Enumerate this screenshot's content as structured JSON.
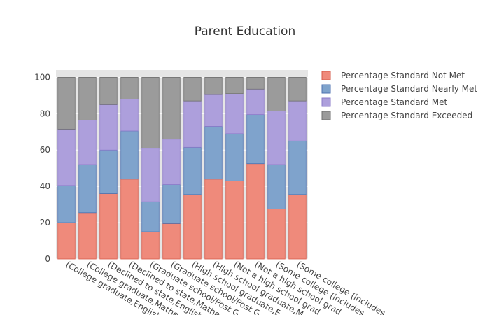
{
  "chart_data": {
    "type": "bar",
    "stacked": true,
    "title": "Parent Education",
    "xlabel": "",
    "ylabel": "",
    "ylim": [
      0,
      100
    ],
    "yticks": [
      0,
      20,
      40,
      60,
      80,
      100
    ],
    "grid": true,
    "legend_position": "top-right",
    "categories": [
      "(College graduate,English",
      "(College graduate,Mathe",
      "(Declined to state,English",
      "(Declined to state,Mathe",
      "(Graduate school/Post G",
      "(Graduate school/Post G",
      "(High school graduate,E",
      "(High school graduate,M",
      "(Not a high school grad",
      "(Not a high school grad",
      "(Some college (includes",
      "(Some college (includes"
    ],
    "series": [
      {
        "name": "Percentage Standard Not Met",
        "color": "#ef8a7b",
        "stroke": "#d65a4a",
        "values": [
          20,
          25.5,
          36,
          44,
          15,
          19.5,
          35.5,
          44,
          43,
          52.5,
          27.5,
          35.5
        ]
      },
      {
        "name": "Percentage Standard Nearly Met",
        "color": "#7fa3cc",
        "stroke": "#4c72b0",
        "values": [
          20.5,
          26.5,
          24,
          26.5,
          16.5,
          21.5,
          26,
          29,
          26,
          27,
          24.5,
          29.5
        ]
      },
      {
        "name": "Percentage Standard Met",
        "color": "#ad9fdc",
        "stroke": "#8b7bc9",
        "values": [
          31,
          24.5,
          25,
          17.5,
          29.5,
          25,
          25.5,
          17.5,
          22,
          14,
          29.5,
          22
        ]
      },
      {
        "name": "Percentage Standard Exceeded",
        "color": "#9b9b9b",
        "stroke": "#6f6f6f",
        "values": [
          28.5,
          23.5,
          15,
          12,
          39,
          34,
          13,
          9.5,
          9,
          6.5,
          18.5,
          13
        ]
      }
    ]
  }
}
